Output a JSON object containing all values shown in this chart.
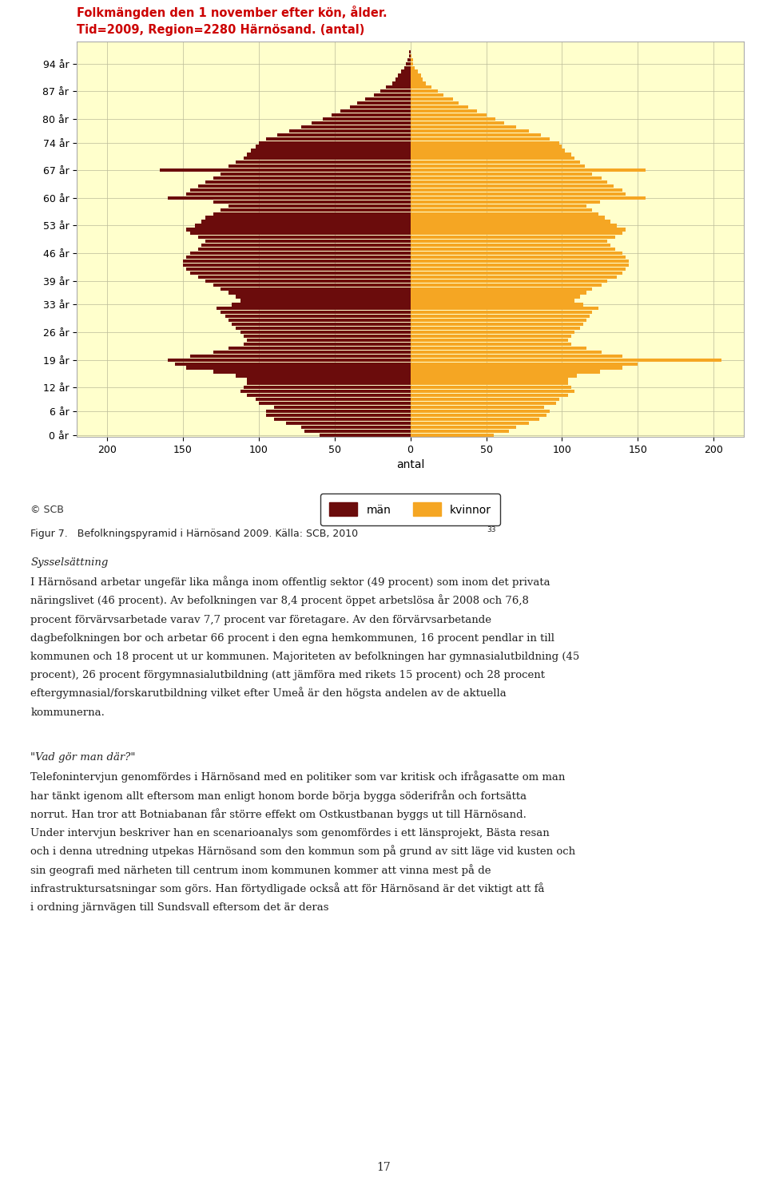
{
  "title_line1": "Folkmängden den 1 november efter kön, ålder.",
  "title_line2": "Tid=2009, Region=2280 Härnösand. (antal)",
  "title_color": "#cc0000",
  "xlabel": "antal",
  "background_color": "#ffffcc",
  "page_background": "#ffffff",
  "man_color": "#6b0c0c",
  "woman_color": "#f5a623",
  "man_label": "män",
  "woman_label": "kvinnor",
  "scb_text": "© SCB",
  "caption": "Figur 7.   Befolkningspyramid i Härnösand 2009. Källa: SCB, 2010",
  "caption_superscript": "33",
  "ages_count": 100,
  "ytick_ages": [
    0,
    6,
    12,
    19,
    26,
    33,
    39,
    46,
    53,
    60,
    67,
    74,
    80,
    87,
    94
  ],
  "ytick_labels": [
    "0 år",
    "6 år",
    "12 år",
    "19 år",
    "26 år",
    "33 år",
    "39 år",
    "46 år",
    "53 år",
    "60 år",
    "67 år",
    "74 år",
    "80 år",
    "87 år",
    "94 år"
  ],
  "xlim": 220,
  "men": [
    60,
    70,
    72,
    82,
    90,
    95,
    95,
    90,
    100,
    102,
    108,
    112,
    110,
    108,
    108,
    115,
    130,
    148,
    155,
    160,
    145,
    130,
    120,
    110,
    108,
    110,
    112,
    115,
    118,
    120,
    122,
    125,
    128,
    118,
    112,
    115,
    120,
    125,
    130,
    135,
    140,
    145,
    148,
    150,
    150,
    148,
    145,
    140,
    138,
    135,
    140,
    145,
    148,
    142,
    138,
    135,
    130,
    125,
    120,
    130,
    160,
    148,
    145,
    140,
    135,
    130,
    125,
    165,
    120,
    115,
    110,
    108,
    105,
    102,
    100,
    95,
    88,
    80,
    72,
    65,
    58,
    52,
    46,
    40,
    35,
    30,
    24,
    20,
    16,
    12,
    10,
    8,
    6,
    4,
    3,
    2,
    1,
    1,
    0,
    0
  ],
  "women": [
    55,
    65,
    70,
    78,
    85,
    90,
    92,
    88,
    96,
    98,
    104,
    108,
    106,
    104,
    104,
    110,
    125,
    140,
    150,
    205,
    140,
    126,
    116,
    106,
    104,
    106,
    108,
    112,
    114,
    116,
    118,
    120,
    124,
    114,
    108,
    112,
    116,
    120,
    126,
    130,
    136,
    140,
    142,
    144,
    144,
    142,
    140,
    135,
    132,
    130,
    135,
    140,
    142,
    136,
    132,
    128,
    124,
    120,
    116,
    125,
    155,
    142,
    140,
    134,
    130,
    126,
    120,
    155,
    115,
    112,
    108,
    106,
    102,
    100,
    98,
    92,
    86,
    78,
    70,
    62,
    56,
    50,
    44,
    38,
    32,
    28,
    22,
    18,
    14,
    10,
    8,
    7,
    5,
    3,
    2,
    2,
    1,
    0,
    0,
    0
  ],
  "body_paragraphs": [
    {
      "heading": "Sysselsättning",
      "text": "I Härnösand arbetar ungefär lika många inom offentlig sektor (49 procent) som inom det privata näringslivet (46 procent). Av befolkningen var 8,4 procent öppet arbetslösa år 2008 och 76,8 procent förvärvsarbetade varav 7,7 procent var företagare. Av den förvärvsarbetande dagbefolkningen bor och arbetar 66 procent i den egna hemkommunen, 16 procent pendlar in till kommunen och 18 procent ut ur kommunen. Majoriteten av befolkningen har gymnasialutbildning (45 procent), 26 procent förgymnasialutbildning (att jämföra med rikets 15 procent) och 28 procent eftergymnasial/forskarutbildning vilket efter Umeå är den högsta andelen av de aktuella kommunerna."
    },
    {
      "heading": "\"Vad gör man där?\"",
      "text": "Telefonintervjun genomfördes i Härnösand med en politiker som var kritisk och ifrågasatte om man har tänkt igenom allt eftersom man enligt honom borde börja bygga söderifrån och fortsätta norrut. Han tror att Botniabanan får större effekt om Ostkustbanan byggs ut till Härnösand. Under intervjun beskriver han en scenarioanalys som genomfördes i ett länsprojekt, Bästa resan och i denna utredning utpekas Härnösand som den kommun som på grund av sitt läge vid kusten och sin geografi med närheten till centrum inom kommunen kommer att vinna mest på de infrastruktursatsningar som görs. Han förtydligade också att för Härnösand är det viktigt att få i ordning järnvägen till Sundsvall eftersom det är deras"
    }
  ],
  "page_number": "17"
}
